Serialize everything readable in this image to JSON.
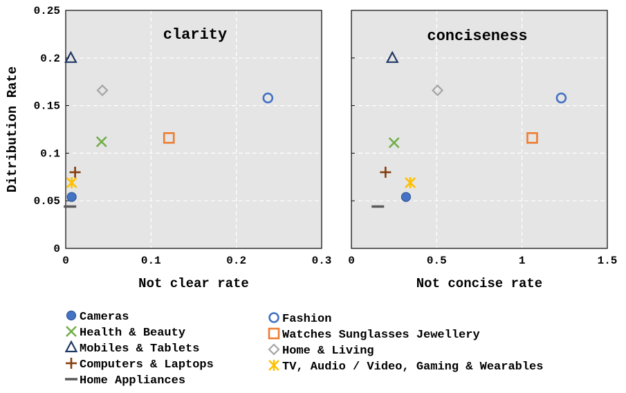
{
  "chart_data": {
    "type": "scatter",
    "ylabel": "Ditribution Rate",
    "ylim": [
      0,
      0.25
    ],
    "yticks": [
      "0",
      "0.05",
      "0.1",
      "0.15",
      "0.2",
      "0.25"
    ],
    "grid": true,
    "legend_placement": "bottom",
    "panels": [
      {
        "title": "clarity",
        "xlabel": "Not clear rate",
        "xlim": [
          0,
          0.3
        ],
        "xticks": [
          "0",
          "0.1",
          "0.2",
          "0.3"
        ],
        "points": [
          {
            "series": "Cameras",
            "x": 0.007,
            "y": 0.054
          },
          {
            "series": "Health & Beauty",
            "x": 0.042,
            "y": 0.112
          },
          {
            "series": "Mobiles & Tablets",
            "x": 0.006,
            "y": 0.2
          },
          {
            "series": "Computers & Laptops",
            "x": 0.011,
            "y": 0.08
          },
          {
            "series": "Home Appliances",
            "x": 0.005,
            "y": 0.044
          },
          {
            "series": "Fashion",
            "x": 0.237,
            "y": 0.158
          },
          {
            "series": "Watches Sunglasses Jewellery",
            "x": 0.121,
            "y": 0.116
          },
          {
            "series": "Home & Living",
            "x": 0.043,
            "y": 0.166
          },
          {
            "series": "TV, Audio / Video, Gaming & Wearables",
            "x": 0.007,
            "y": 0.069
          }
        ]
      },
      {
        "title": "conciseness",
        "xlabel": "Not concise rate",
        "xlim": [
          0,
          1.5
        ],
        "xticks": [
          "0",
          "0.5",
          "1",
          "1.5"
        ],
        "points": [
          {
            "series": "Cameras",
            "x": 0.32,
            "y": 0.054
          },
          {
            "series": "Health & Beauty",
            "x": 0.25,
            "y": 0.111
          },
          {
            "series": "Mobiles & Tablets",
            "x": 0.24,
            "y": 0.2
          },
          {
            "series": "Computers & Laptops",
            "x": 0.2,
            "y": 0.08
          },
          {
            "series": "Home Appliances",
            "x": 0.155,
            "y": 0.044
          },
          {
            "series": "Fashion",
            "x": 1.23,
            "y": 0.158
          },
          {
            "series": "Watches Sunglasses Jewellery",
            "x": 1.06,
            "y": 0.116
          },
          {
            "series": "Home & Living",
            "x": 0.505,
            "y": 0.166
          },
          {
            "series": "TV, Audio / Video, Gaming & Wearables",
            "x": 0.345,
            "y": 0.069
          }
        ]
      }
    ],
    "series": [
      {
        "name": "Cameras",
        "marker": "filled-circle",
        "color": "#4472C4"
      },
      {
        "name": "Health & Beauty",
        "marker": "x",
        "color": "#70AD47"
      },
      {
        "name": "Mobiles & Tablets",
        "marker": "triangle",
        "color": "#203864"
      },
      {
        "name": "Computers & Laptops",
        "marker": "plus",
        "color": "#843C0C"
      },
      {
        "name": "Home Appliances",
        "marker": "dash",
        "color": "#595959"
      },
      {
        "name": "Fashion",
        "marker": "circle",
        "color": "#4472C4"
      },
      {
        "name": "Watches Sunglasses Jewellery",
        "marker": "square",
        "color": "#ED7D31"
      },
      {
        "name": "Home & Living",
        "marker": "diamond",
        "color": "#A5A5A5"
      },
      {
        "name": "TV, Audio / Video, Gaming & Wearables",
        "marker": "asterisk",
        "color": "#FFC000"
      }
    ]
  }
}
